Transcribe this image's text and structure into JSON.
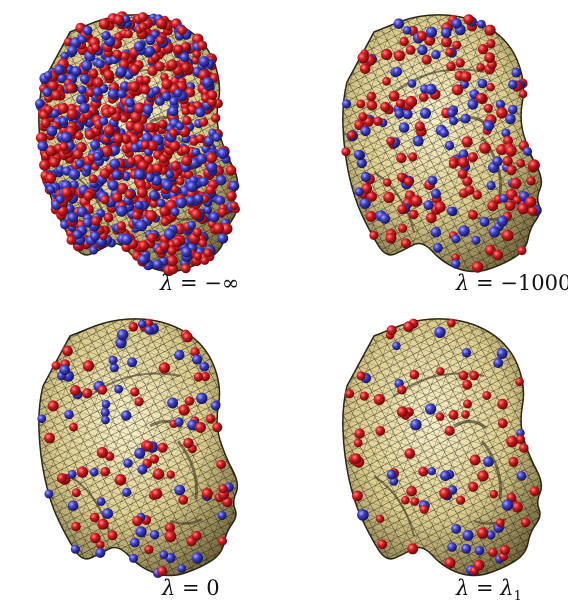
{
  "panels": [
    {
      "id": "neg-inf",
      "lambda_label": "λ",
      "eq": " = ",
      "value": "−∞",
      "sub": ""
    },
    {
      "id": "neg-1000",
      "lambda_label": "λ",
      "eq": " = ",
      "value": "−1000",
      "sub": ""
    },
    {
      "id": "zero",
      "lambda_label": "λ",
      "eq": " = ",
      "value": "0",
      "sub": ""
    },
    {
      "id": "lambda1",
      "lambda_label": "λ",
      "eq": " = ",
      "value": "λ",
      "sub": "1"
    }
  ],
  "colors": {
    "surface": "#e8dca0",
    "surface_shade": "#8a7c4a",
    "grid": "#1a1a1a",
    "dot_red": "#c4161c",
    "dot_blue": "#3a3dbb"
  },
  "dot_density": {
    "neg-inf": 1.0,
    "neg-1000": 0.25,
    "zero": 0.14,
    "lambda1": 0.11
  }
}
